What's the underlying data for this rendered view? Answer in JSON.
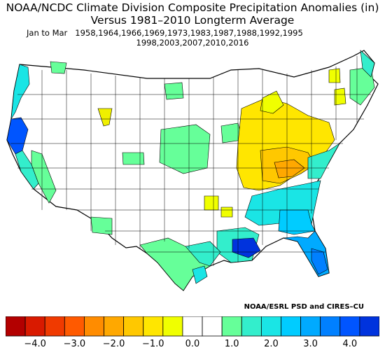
{
  "title": {
    "line1": "NOAA/NCDC Climate Division Composite Precipitation Anomalies (in)",
    "line2": "Versus 1981–2010 Longterm Average",
    "period_label": "Jan to Mar",
    "years_line1": "1958,1964,1966,1969,1973,1983,1987,1988,1992,1995",
    "years_line2": "1998,2003,2007,2010,2016"
  },
  "credit": "NOAA/ESRL PSD and CIRES–CU",
  "colorbar": {
    "colors": [
      "#b30000",
      "#d91a00",
      "#f03a00",
      "#ff5a00",
      "#ff8c00",
      "#ffa800",
      "#ffc800",
      "#ffe600",
      "#f0ff00",
      "#ffffff",
      "#ffffff",
      "#66ff99",
      "#33eecc",
      "#1ae5e5",
      "#00ccff",
      "#00aaff",
      "#0080ff",
      "#0055ff",
      "#0033dd"
    ],
    "tick_labels": [
      "−4.0",
      "−3.0",
      "−2.0",
      "−1.0",
      "0.0",
      "1.0",
      "2.0",
      "3.0",
      "4.0"
    ]
  },
  "map": {
    "colors": {
      "dry_light": "#f0f000",
      "dry_mid": "#ffd000",
      "dry_strong": "#ffa800",
      "wet_light": "#66ff99",
      "wet_mid": "#33eecc",
      "wet_strong": "#00ccff",
      "wet_heavy": "#0080ff",
      "wet_max": "#0033dd"
    }
  }
}
